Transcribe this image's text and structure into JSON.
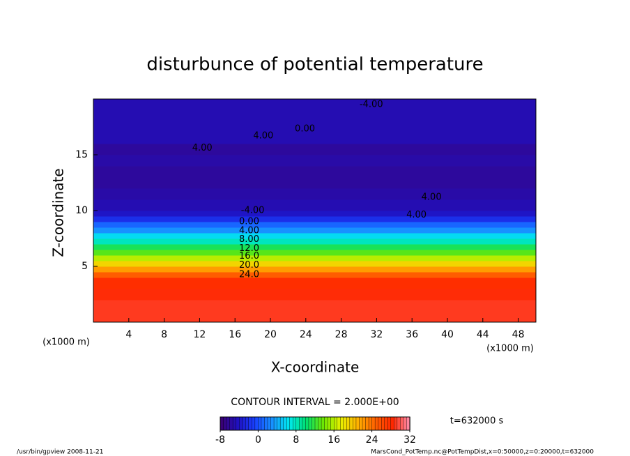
{
  "chart_data": {
    "type": "contour",
    "title": "disturbunce of potential temperature",
    "xlabel": "X-coordinate",
    "ylabel": "Z-coordinate",
    "xunit": "(x1000 m)",
    "yunit": "(x1000 m)",
    "xlim": [
      0,
      50
    ],
    "ylim": [
      0,
      20
    ],
    "xticks": [
      4,
      8,
      12,
      16,
      20,
      24,
      28,
      32,
      36,
      40,
      44,
      48
    ],
    "yticks": [
      5,
      10,
      15
    ],
    "z_bins": [
      0,
      1,
      2,
      3,
      4,
      4.5,
      5,
      5.5,
      6,
      6.5,
      7,
      7.5,
      8,
      8.5,
      9,
      9.5,
      10,
      11,
      12,
      13,
      14,
      15,
      16,
      17,
      18,
      19,
      20
    ],
    "values": [
      29,
      29,
      28.5,
      28,
      25,
      22,
      19,
      16,
      13,
      11,
      8,
      6,
      3,
      1,
      -2,
      -4,
      -5,
      -5.5,
      -6,
      -6,
      -5.5,
      -6,
      -5,
      -5,
      -5,
      -5
    ],
    "contour_labels": [
      {
        "value": -4,
        "label": "-4.00",
        "x": 18,
        "z": 10
      },
      {
        "value": 0,
        "label": "0.00",
        "x": 17.6,
        "z": 9
      },
      {
        "value": 4,
        "label": "4.00",
        "x": 17.6,
        "z": 8.2
      },
      {
        "value": 8,
        "label": "8.00",
        "x": 17.6,
        "z": 7.4
      },
      {
        "value": 12,
        "label": "12.0",
        "x": 17.6,
        "z": 6.6
      },
      {
        "value": 16,
        "label": "16.0",
        "x": 17.6,
        "z": 5.9
      },
      {
        "value": 20,
        "label": "20.0",
        "x": 17.6,
        "z": 5.1
      },
      {
        "value": 24,
        "label": "24.0",
        "x": 17.6,
        "z": 4.25
      },
      {
        "value": -4,
        "label": "-4.00",
        "x": 31.4,
        "z": 19.5
      },
      {
        "value": 0,
        "label": "0.00",
        "x": 23.9,
        "z": 17.3
      },
      {
        "value": 4,
        "label": "4.00",
        "x": 19.2,
        "z": 16.7
      },
      {
        "value": 4,
        "label": "4.00",
        "x": 12.3,
        "z": 15.6
      },
      {
        "value": 4,
        "label": "4.00",
        "x": 36.5,
        "z": 9.6
      },
      {
        "value": 4,
        "label": "4.00",
        "x": 38.2,
        "z": 11.2
      }
    ],
    "contour_interval": {
      "value": 2,
      "label": "CONTOUR INTERVAL = 2.000E+00"
    },
    "time_label": "t=632000 s",
    "clim": [
      -8,
      32
    ],
    "cticks": [
      -8,
      0,
      8,
      16,
      24,
      32
    ],
    "colormap": [
      "#3c0070",
      "#2010c0",
      "#1840ff",
      "#1890ff",
      "#00e8f0",
      "#00e070",
      "#70e800",
      "#e8f000",
      "#ffb000",
      "#ff6000",
      "#ff2800",
      "#ff90b0"
    ],
    "footer_left": "/usr/bin/gpview   2008-11-21",
    "footer_right": "MarsCond_PotTemp.nc@PotTempDist,x=0:50000,z=0:20000,t=632000"
  }
}
